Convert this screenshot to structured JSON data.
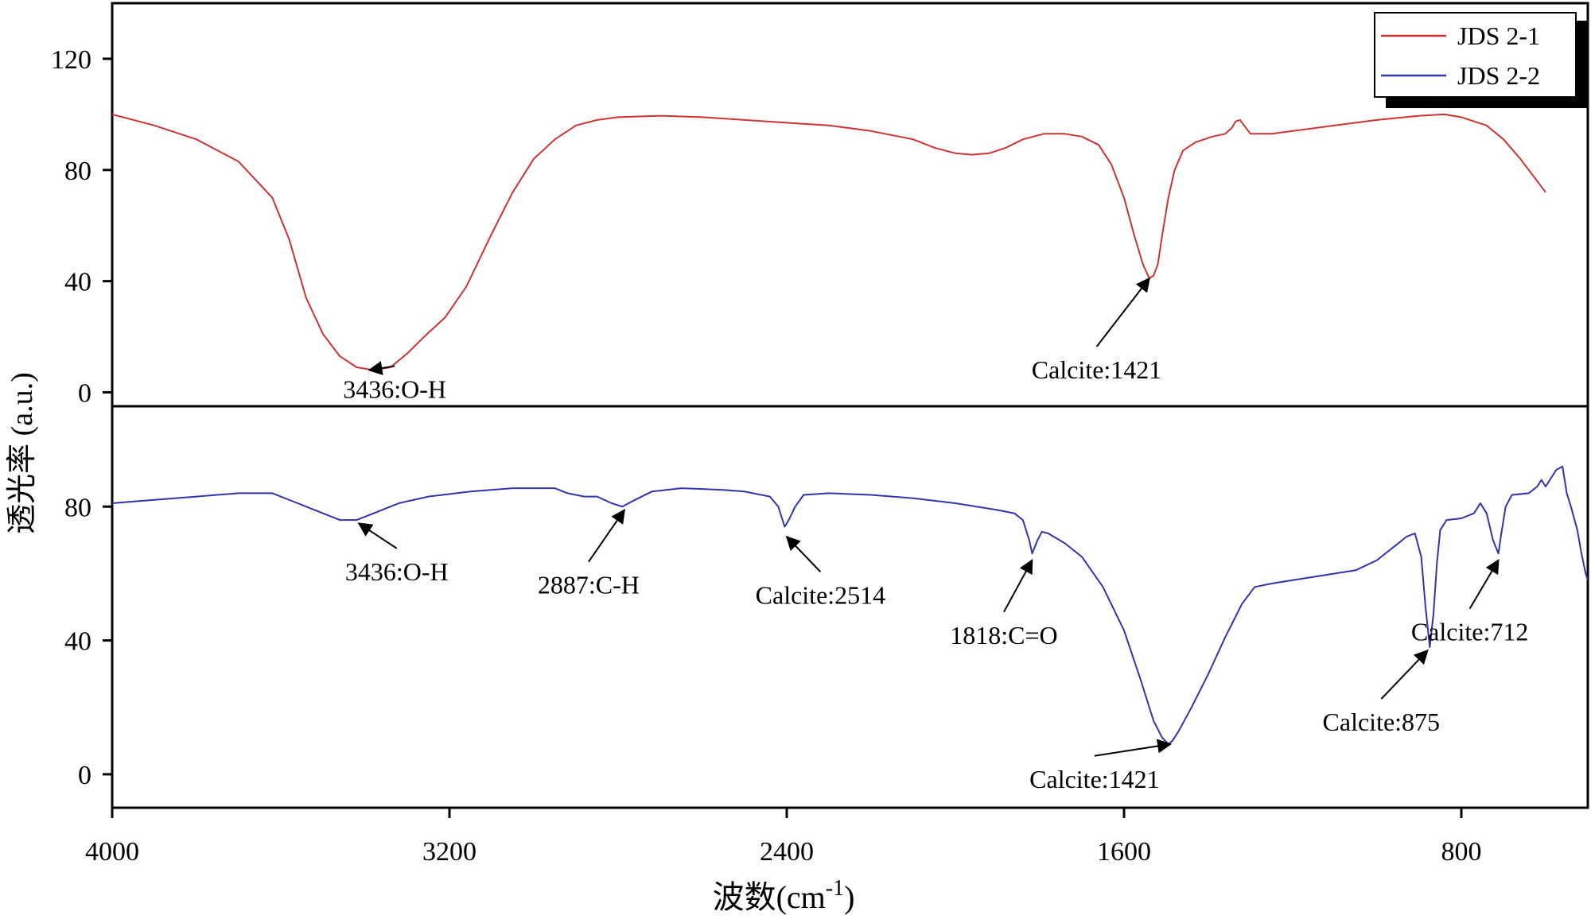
{
  "chart_data": {
    "type": "line",
    "xlabel": "波数",
    "xlabel_unit_base": "(cm",
    "xlabel_unit_exp": "-1",
    "xlabel_unit_close": ")",
    "ylabel": "透光率 (a.u.)",
    "x_reversed": true,
    "xlim": [
      4000,
      500
    ],
    "xticks": [
      4000,
      3200,
      2400,
      1600,
      800
    ],
    "legend_position": "top-right",
    "panels": [
      {
        "ylim": [
          -5,
          140
        ],
        "yticks": [
          0,
          40,
          80,
          120
        ],
        "series": [
          {
            "name": "JDS 2-1",
            "color": "#cc3333",
            "points": [
              [
                4000,
                100
              ],
              [
                3900,
                96
              ],
              [
                3800,
                91
              ],
              [
                3700,
                83
              ],
              [
                3620,
                70
              ],
              [
                3580,
                55
              ],
              [
                3540,
                34
              ],
              [
                3500,
                21
              ],
              [
                3460,
                13
              ],
              [
                3420,
                9
              ],
              [
                3380,
                8
              ],
              [
                3340,
                9
              ],
              [
                3300,
                14
              ],
              [
                3260,
                20
              ],
              [
                3210,
                27
              ],
              [
                3160,
                38
              ],
              [
                3100,
                57
              ],
              [
                3050,
                72
              ],
              [
                3000,
                84
              ],
              [
                2950,
                91
              ],
              [
                2900,
                96
              ],
              [
                2850,
                98
              ],
              [
                2800,
                99
              ],
              [
                2700,
                99.5
              ],
              [
                2600,
                99
              ],
              [
                2500,
                98
              ],
              [
                2400,
                97
              ],
              [
                2300,
                96
              ],
              [
                2200,
                94
              ],
              [
                2100,
                91
              ],
              [
                2050,
                88
              ],
              [
                2000,
                86
              ],
              [
                1960,
                85.5
              ],
              [
                1920,
                86
              ],
              [
                1880,
                88
              ],
              [
                1840,
                91
              ],
              [
                1790,
                93
              ],
              [
                1740,
                93
              ],
              [
                1700,
                92
              ],
              [
                1660,
                89
              ],
              [
                1630,
                82
              ],
              [
                1600,
                70
              ],
              [
                1575,
                56
              ],
              [
                1555,
                46
              ],
              [
                1540,
                41
              ],
              [
                1530,
                42
              ],
              [
                1520,
                46
              ],
              [
                1510,
                56
              ],
              [
                1495,
                70
              ],
              [
                1480,
                80
              ],
              [
                1460,
                87
              ],
              [
                1430,
                90
              ],
              [
                1390,
                92
              ],
              [
                1360,
                93
              ],
              [
                1345,
                95
              ],
              [
                1335,
                97.5
              ],
              [
                1325,
                98
              ],
              [
                1315,
                96
              ],
              [
                1300,
                93
              ],
              [
                1250,
                93
              ],
              [
                1200,
                94
              ],
              [
                1100,
                96
              ],
              [
                1000,
                98
              ],
              [
                900,
                99.5
              ],
              [
                840,
                100
              ],
              [
                800,
                99
              ],
              [
                740,
                96
              ],
              [
                700,
                91
              ],
              [
                660,
                84
              ],
              [
                620,
                76
              ],
              [
                600,
                72
              ]
            ]
          }
        ]
      },
      {
        "ylim": [
          -10,
          110
        ],
        "yticks": [
          0,
          40,
          80
        ],
        "series": [
          {
            "name": "JDS 2-2",
            "color": "#3333aa",
            "points": [
              [
                4000,
                81
              ],
              [
                3900,
                82
              ],
              [
                3800,
                83
              ],
              [
                3700,
                84
              ],
              [
                3620,
                84
              ],
              [
                3560,
                81
              ],
              [
                3500,
                78
              ],
              [
                3460,
                76
              ],
              [
                3420,
                76
              ],
              [
                3380,
                78
              ],
              [
                3320,
                81
              ],
              [
                3250,
                83
              ],
              [
                3150,
                84.5
              ],
              [
                3050,
                85.5
              ],
              [
                2950,
                85.5
              ],
              [
                2920,
                84
              ],
              [
                2880,
                83
              ],
              [
                2850,
                83
              ],
              [
                2815,
                81
              ],
              [
                2790,
                80
              ],
              [
                2760,
                82
              ],
              [
                2720,
                84.5
              ],
              [
                2650,
                85.5
              ],
              [
                2550,
                85
              ],
              [
                2500,
                84.5
              ],
              [
                2440,
                83
              ],
              [
                2420,
                80
              ],
              [
                2405,
                74
              ],
              [
                2395,
                76
              ],
              [
                2380,
                80
              ],
              [
                2360,
                83.5
              ],
              [
                2300,
                84
              ],
              [
                2200,
                83.5
              ],
              [
                2100,
                82.5
              ],
              [
                2000,
                81
              ],
              [
                1900,
                79
              ],
              [
                1860,
                78
              ],
              [
                1840,
                76
              ],
              [
                1825,
                70
              ],
              [
                1818,
                66
              ],
              [
                1805,
                70
              ],
              [
                1795,
                72.5
              ],
              [
                1780,
                72
              ],
              [
                1740,
                69
              ],
              [
                1700,
                65
              ],
              [
                1650,
                56
              ],
              [
                1600,
                43
              ],
              [
                1560,
                28
              ],
              [
                1530,
                16
              ],
              [
                1510,
                11
              ],
              [
                1495,
                9
              ],
              [
                1485,
                10
              ],
              [
                1470,
                13
              ],
              [
                1440,
                20
              ],
              [
                1400,
                30
              ],
              [
                1360,
                41
              ],
              [
                1320,
                51
              ],
              [
                1290,
                56
              ],
              [
                1250,
                57
              ],
              [
                1200,
                58
              ],
              [
                1150,
                59
              ],
              [
                1100,
                60
              ],
              [
                1050,
                61
              ],
              [
                1000,
                64
              ],
              [
                960,
                68
              ],
              [
                930,
                71
              ],
              [
                910,
                72
              ],
              [
                895,
                65
              ],
              [
                885,
                50
              ],
              [
                875,
                38
              ],
              [
                866,
                48
              ],
              [
                858,
                63
              ],
              [
                850,
                73
              ],
              [
                835,
                76
              ],
              [
                800,
                76.5
              ],
              [
                770,
                78
              ],
              [
                755,
                81
              ],
              [
                740,
                78
              ],
              [
                725,
                70
              ],
              [
                712,
                66
              ],
              [
                705,
                72
              ],
              [
                695,
                80
              ],
              [
                680,
                83.5
              ],
              [
                640,
                84
              ],
              [
                620,
                86
              ],
              [
                610,
                88
              ],
              [
                600,
                86
              ],
              [
                590,
                88
              ],
              [
                575,
                91
              ],
              [
                560,
                92
              ],
              [
                550,
                84
              ],
              [
                540,
                80
              ],
              [
                525,
                73
              ],
              [
                515,
                66
              ],
              [
                505,
                60
              ],
              [
                500,
                58
              ]
            ]
          }
        ]
      }
    ],
    "legend": [
      {
        "name": "JDS 2-1",
        "color": "#cc3333"
      },
      {
        "name": "JDS 2-2",
        "color": "#3333aa"
      }
    ],
    "annotations": [
      {
        "panel": 0,
        "text": "3436:O-H",
        "point": [
          3390,
          8
        ],
        "label": [
          3330,
          -2
        ]
      },
      {
        "panel": 0,
        "text": "Calcite:1421",
        "point": [
          1540,
          41
        ],
        "label": [
          1665,
          5
        ]
      },
      {
        "panel": 1,
        "text": "3436:O-H",
        "point": [
          3415,
          75
        ],
        "label": [
          3325,
          58
        ]
      },
      {
        "panel": 1,
        "text": "2887:C-H",
        "point": [
          2785,
          79
        ],
        "label": [
          2870,
          54
        ]
      },
      {
        "panel": 1,
        "text": "Calcite:2514",
        "point": [
          2400,
          71
        ],
        "label": [
          2320,
          51
        ]
      },
      {
        "panel": 1,
        "text": "1818:C=O",
        "point": [
          1818,
          64
        ],
        "label": [
          1885,
          39
        ]
      },
      {
        "panel": 1,
        "text": "Calcite:875",
        "point": [
          880,
          37
        ],
        "label": [
          990,
          13
        ]
      },
      {
        "panel": 1,
        "text": "Calcite:712",
        "point": [
          712,
          64
        ],
        "label": [
          780,
          40
        ]
      },
      {
        "panel": 1,
        "text": "Calcite:1421",
        "point": [
          1490,
          9
        ],
        "label": [
          1670,
          -4
        ]
      }
    ]
  }
}
